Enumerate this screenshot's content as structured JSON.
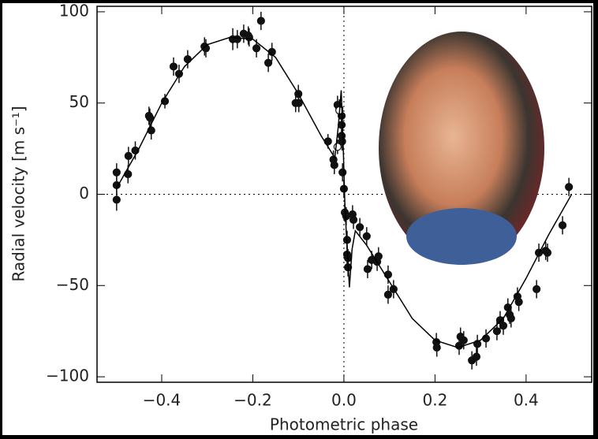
{
  "chart_data": {
    "type": "scatter",
    "xlabel": "Photometric phase",
    "ylabel": "Radial velocity [m s⁻¹]",
    "xlim": [
      -0.542,
      0.544
    ],
    "ylim": [
      -103,
      103
    ],
    "xticks": [
      {
        "value": -0.4,
        "label": "−0.4"
      },
      {
        "value": -0.2,
        "label": "−0.2"
      },
      {
        "value": 0,
        "label": "0.0"
      },
      {
        "value": 0.2,
        "label": "0.2"
      },
      {
        "value": 0.4,
        "label": "0.4"
      }
    ],
    "yticks": [
      {
        "value": -100,
        "label": "−100"
      },
      {
        "value": -50,
        "label": "−50"
      },
      0,
      50,
      100
    ],
    "zero_lines": true,
    "series": [
      {
        "color": "#111111",
        "marker": "filled",
        "x": [
          -0.499,
          -0.499,
          -0.499,
          -0.474,
          -0.473,
          -0.458,
          -0.428,
          -0.426,
          -0.423,
          -0.393,
          -0.374,
          -0.362,
          -0.343,
          -0.306,
          -0.303,
          -0.244,
          -0.234,
          -0.22,
          -0.21,
          -0.208,
          -0.192,
          -0.182,
          -0.166,
          -0.158,
          -0.106,
          -0.099,
          -0.1,
          -0.035,
          -0.023,
          -0.021,
          -0.014,
          -0.01,
          -0.005,
          -0.005,
          -0.005,
          -0.004,
          -0.003,
          0,
          0.002,
          0.005,
          0.007,
          0.007,
          0.009,
          0.009,
          0.019,
          0.021,
          0.035,
          0.05,
          0.052,
          0.061,
          0.073,
          0.076,
          0.097,
          0.097,
          0.109,
          0.203,
          0.204,
          0.253,
          0.256,
          0.263,
          0.281,
          0.291,
          0.293,
          0.312,
          0.336,
          0.343,
          0.35,
          0.36,
          0.364,
          0.367,
          0.381,
          0.384,
          0.423,
          0.428,
          0.443,
          0.447,
          0.48,
          0.494
        ],
        "values": [
          -3,
          5,
          12,
          11,
          21,
          24,
          43,
          42,
          35,
          51,
          70,
          66,
          74,
          81,
          80,
          85,
          85,
          88,
          87,
          86,
          80,
          95,
          72,
          78,
          50,
          50,
          55,
          29,
          19,
          16,
          49,
          47,
          43,
          38,
          32,
          29,
          12,
          3,
          -10,
          -12,
          -25,
          -33,
          -40,
          -35,
          -11,
          -14,
          -18,
          -23,
          -41,
          -36,
          -37,
          -34,
          -44,
          -55,
          -52,
          -81,
          -84,
          -83,
          -78,
          -80,
          -91,
          -89,
          -82,
          -79,
          -75,
          -69,
          -72,
          -62,
          -66,
          -68,
          -56,
          -59,
          -52,
          -32,
          -31,
          -32,
          -17,
          4
        ],
        "errors": [
          6,
          5,
          5,
          5,
          5,
          5,
          5,
          5,
          5,
          4,
          5,
          5,
          5,
          5,
          5,
          6,
          5,
          5,
          5,
          5,
          5,
          5,
          5,
          5,
          5,
          5,
          5,
          4,
          5,
          5,
          5,
          5,
          5,
          5,
          5,
          5,
          5,
          5,
          5,
          5,
          5,
          5,
          5,
          5,
          5,
          5,
          5,
          5,
          5,
          5,
          5,
          5,
          5,
          5,
          5,
          5,
          5,
          5,
          5,
          5,
          5,
          5,
          5,
          5,
          5,
          5,
          5,
          5,
          5,
          5,
          5,
          5,
          5,
          5,
          5,
          5,
          5,
          5
        ]
      },
      {
        "color": "#111111",
        "marker": "open",
        "x": [
          -0.014,
          -0.01
        ],
        "values": [
          26,
          46
        ],
        "errors": [
          4,
          4
        ]
      },
      {
        "color": "#000000",
        "marker": "line",
        "x": [
          -0.5,
          -0.45,
          -0.4,
          -0.35,
          -0.3,
          -0.25,
          -0.2,
          -0.15,
          -0.1,
          -0.05,
          -0.02,
          -0.012,
          -0.006,
          -0.002,
          0.002,
          0.006,
          0.012,
          0.018,
          0.025,
          0.05,
          0.1,
          0.15,
          0.2,
          0.25,
          0.3,
          0.35,
          0.4,
          0.45,
          0.5
        ],
        "values": [
          3,
          25,
          50,
          70,
          82,
          86,
          85,
          75,
          55,
          32,
          20,
          38,
          57,
          30,
          -5,
          -25,
          -51,
          -30,
          -20,
          -28,
          -48,
          -68,
          -80,
          -84,
          -80,
          -68,
          -46,
          -22,
          0
        ]
      }
    ]
  }
}
